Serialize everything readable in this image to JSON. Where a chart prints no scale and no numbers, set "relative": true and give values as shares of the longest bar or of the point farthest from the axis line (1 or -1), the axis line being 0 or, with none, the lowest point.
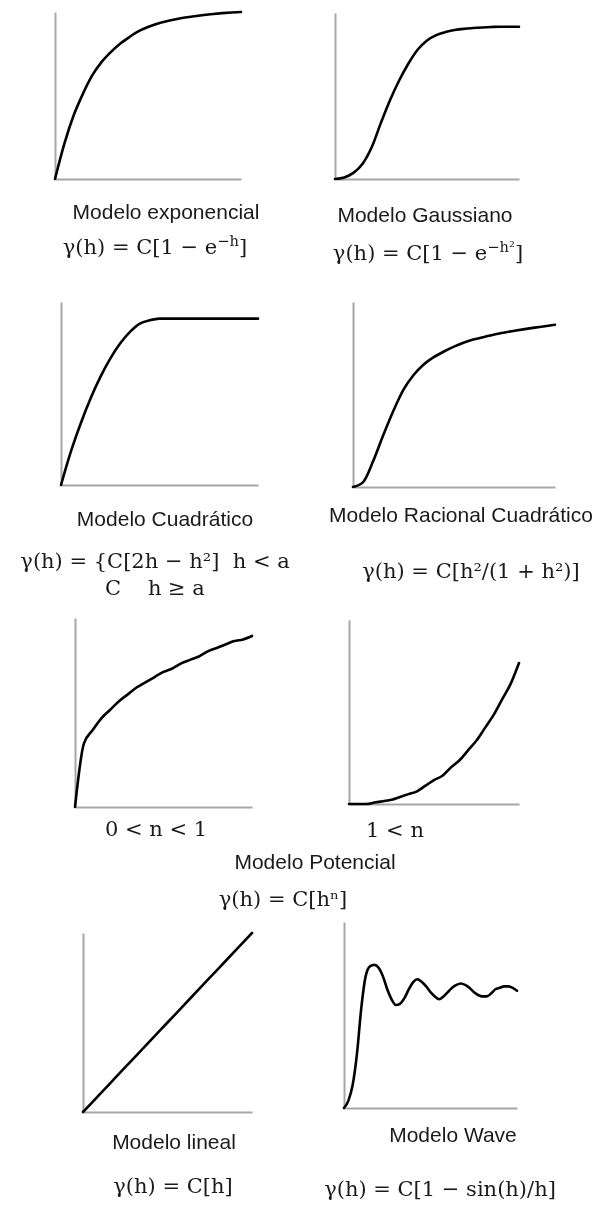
{
  "chart_data": [
    {
      "type": "line",
      "relative": true,
      "title": "Modelo exponencial",
      "subtitle": "γ(h) = C[1 − e$^{−h}$]",
      "color": "#000000",
      "categories": [
        null,
        null,
        null,
        null,
        null,
        null,
        null,
        null,
        null,
        null,
        null,
        null,
        null,
        null,
        null,
        null,
        null,
        null,
        null,
        null,
        null
      ],
      "values": [
        0,
        0.21,
        0.38,
        0.51,
        0.62,
        0.7,
        0.76,
        0.81,
        0.85,
        0.885,
        0.91,
        0.93,
        0.945,
        0.957,
        0.967,
        0.975,
        0.982,
        0.988,
        0.993,
        0.997,
        1
      ]
    },
    {
      "type": "line",
      "relative": true,
      "title": "Modelo Gaussiano",
      "subtitle": "γ(h) = C[1 − e$^{−h²}$]",
      "color": "#000000",
      "categories": [
        null,
        null,
        null,
        null,
        null,
        null,
        null,
        null,
        null,
        null,
        null,
        null,
        null,
        null,
        null,
        null,
        null,
        null,
        null,
        null,
        null
      ],
      "values": [
        0,
        0.01,
        0.04,
        0.1,
        0.21,
        0.37,
        0.52,
        0.65,
        0.76,
        0.85,
        0.91,
        0.945,
        0.965,
        0.978,
        0.986,
        0.991,
        0.995,
        0.998,
        1,
        1,
        1
      ]
    },
    {
      "type": "line",
      "relative": true,
      "title": "Modelo Cuadrático",
      "subtitle": "γ(h) = {C[2h − h²]  h < a\nC    h ≥ a",
      "color": "#000000",
      "categories": [
        null,
        null,
        null,
        null,
        null,
        null,
        null,
        null,
        null,
        null,
        null,
        null,
        null,
        null,
        null,
        null,
        null,
        null,
        null,
        null,
        null
      ],
      "values": [
        0,
        0.2,
        0.37,
        0.52,
        0.65,
        0.76,
        0.85,
        0.92,
        0.97,
        0.99,
        1,
        1,
        1,
        1,
        1,
        1,
        1,
        1,
        1,
        1,
        1
      ]
    },
    {
      "type": "line",
      "relative": true,
      "title": "Modelo Racional Cuadrático",
      "subtitle": "γ(h) = C[h²/(1 + h²)]",
      "color": "#000000",
      "categories": [
        null,
        null,
        null,
        null,
        null,
        null,
        null,
        null,
        null,
        null,
        null,
        null,
        null,
        null,
        null,
        null,
        null,
        null,
        null,
        null,
        null
      ],
      "values": [
        0,
        0.03,
        0.16,
        0.32,
        0.47,
        0.6,
        0.69,
        0.755,
        0.8,
        0.835,
        0.865,
        0.89,
        0.91,
        0.925,
        0.94,
        0.952,
        0.963,
        0.973,
        0.982,
        0.991,
        1
      ]
    },
    {
      "type": "line",
      "relative": true,
      "xlabel": "0 < n < 1",
      "title": "Modelo Potencial",
      "subtitle": "γ(h) = C[hⁿ]",
      "color": "#000000",
      "categories": [
        null,
        null,
        null,
        null,
        null,
        null,
        null,
        null,
        null,
        null,
        null,
        null,
        null,
        null,
        null,
        null,
        null,
        null,
        null,
        null,
        null
      ],
      "values": [
        0,
        0.37,
        0.45,
        0.52,
        0.57,
        0.62,
        0.66,
        0.7,
        0.73,
        0.76,
        0.79,
        0.81,
        0.84,
        0.86,
        0.88,
        0.91,
        0.93,
        0.95,
        0.97,
        0.98,
        1
      ]
    },
    {
      "type": "line",
      "relative": true,
      "xlabel": "1 < n",
      "color": "#000000",
      "categories": [
        null,
        null,
        null,
        null,
        null,
        null,
        null,
        null,
        null,
        null,
        null,
        null,
        null,
        null,
        null,
        null,
        null,
        null,
        null,
        null,
        null
      ],
      "values": [
        0,
        0,
        0,
        0.01,
        0.02,
        0.03,
        0.05,
        0.07,
        0.09,
        0.13,
        0.17,
        0.2,
        0.26,
        0.31,
        0.38,
        0.45,
        0.54,
        0.63,
        0.74,
        0.85,
        1
      ]
    },
    {
      "type": "line",
      "relative": true,
      "title": "Modelo lineal",
      "subtitle": "γ(h) = C[h]",
      "color": "#000000",
      "categories": [
        null,
        null,
        null,
        null,
        null,
        null,
        null,
        null,
        null,
        null,
        null
      ],
      "values": [
        0,
        0.1,
        0.2,
        0.3,
        0.4,
        0.5,
        0.6,
        0.7,
        0.8,
        0.9,
        1
      ]
    },
    {
      "type": "line",
      "relative": true,
      "title": "Modelo Wave",
      "subtitle": "γ(h) = C[1 − sin(h)/h]",
      "color": "#000000",
      "categories": [
        null,
        null,
        null,
        null,
        null,
        null,
        null,
        null,
        null,
        null,
        null,
        null,
        null,
        null,
        null,
        null,
        null,
        null,
        null,
        null,
        null,
        null,
        null,
        null,
        null,
        null,
        null,
        null,
        null,
        null,
        null,
        null,
        null,
        null,
        null,
        null,
        null,
        null,
        null,
        null,
        null
      ],
      "values": [
        0,
        0.05,
        0.16,
        0.38,
        0.7,
        0.92,
        0.99,
        1,
        0.98,
        0.92,
        0.83,
        0.76,
        0.72,
        0.73,
        0.77,
        0.83,
        0.88,
        0.9,
        0.88,
        0.85,
        0.81,
        0.78,
        0.76,
        0.78,
        0.81,
        0.84,
        0.86,
        0.87,
        0.86,
        0.84,
        0.81,
        0.79,
        0.78,
        0.78,
        0.8,
        0.83,
        0.84,
        0.85,
        0.85,
        0.84,
        0.82
      ]
    }
  ]
}
